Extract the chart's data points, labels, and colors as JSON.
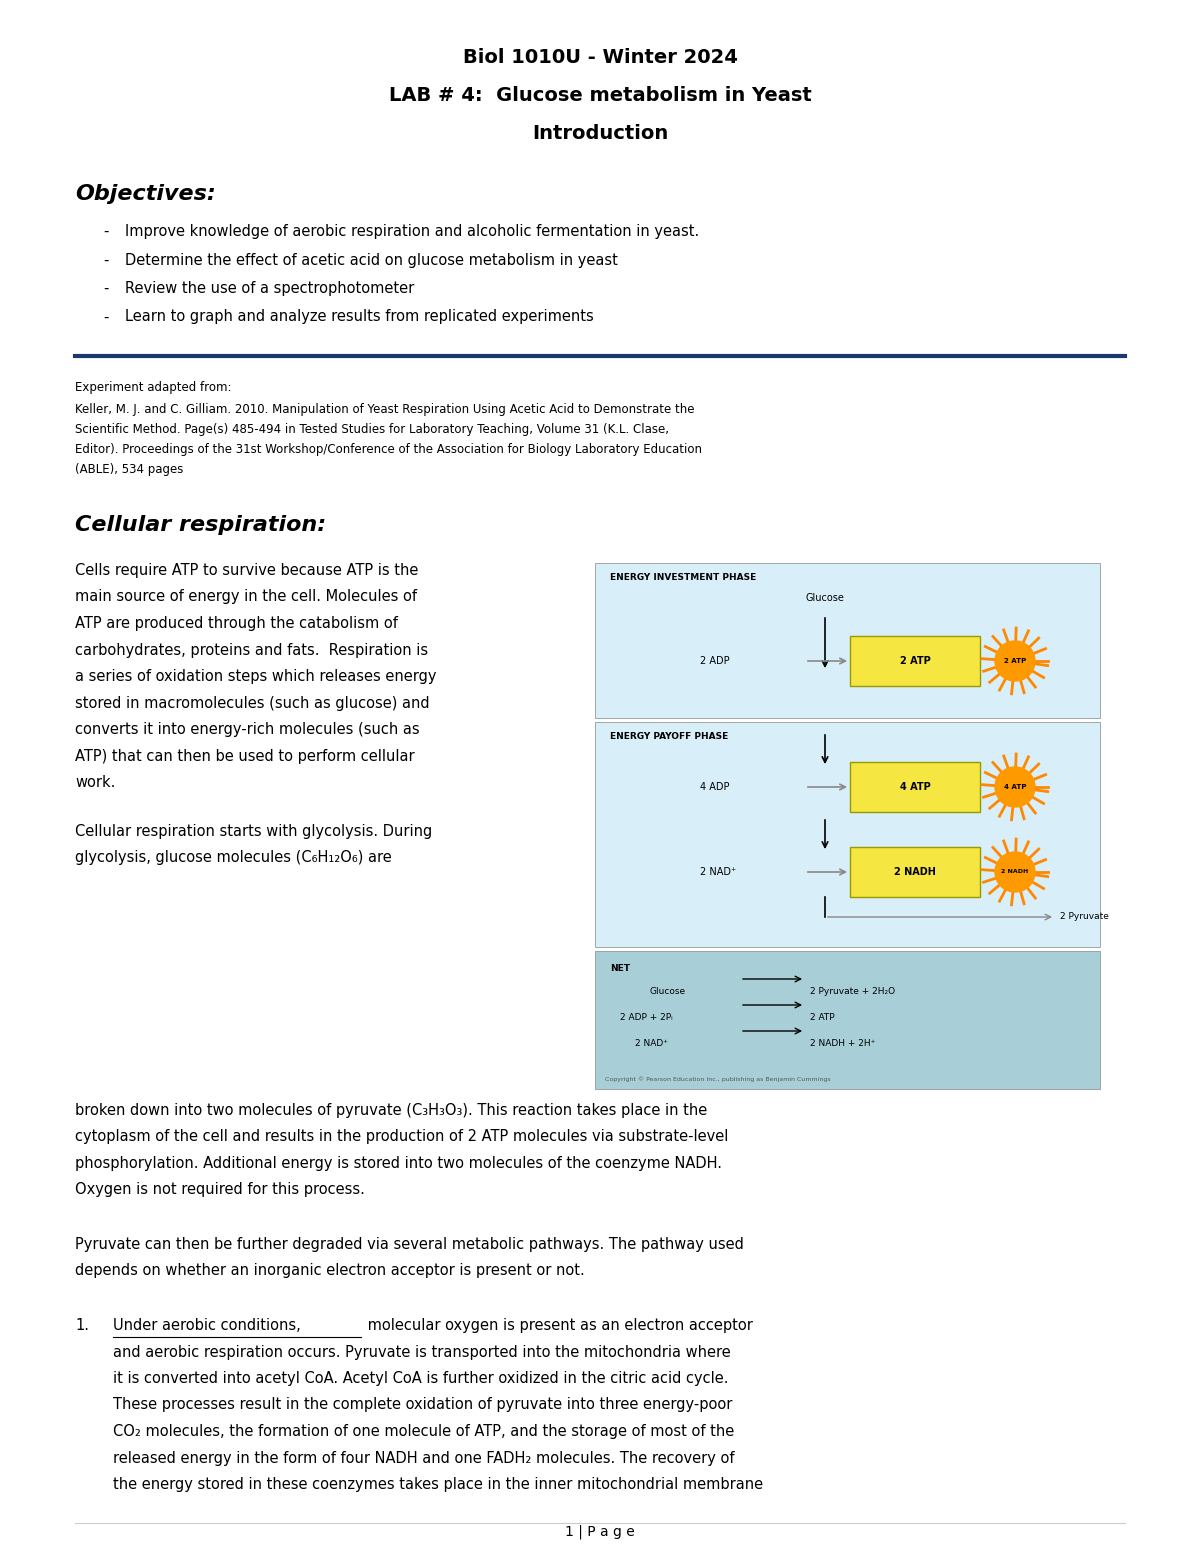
{
  "title_line1": "Biol 1010U - Winter 2024",
  "title_line2": "LAB # 4:  Glucose metabolism in Yeast",
  "title_line3": "Introduction",
  "objectives_header": "Objectives:",
  "objectives": [
    "Improve knowledge of aerobic respiration and alcoholic fermentation in yeast.",
    "Determine the effect of acetic acid on glucose metabolism in yeast",
    "Review the use of a spectrophotometer",
    "Learn to graph and analyze results from replicated experiments"
  ],
  "ref_label": "Experiment adapted from:",
  "ref_lines": [
    "Keller, M. J. and C. Gilliam. 2010. Manipulation of Yeast Respiration Using Acetic Acid to Demonstrate the",
    "Scientific Method. Page(s) 485-494 in Tested Studies for Laboratory Teaching, Volume 31 (K.L. Clase,",
    "Editor). Proceedings of the 31st Workshop/Conference of the Association for Biology Laboratory Education",
    "(ABLE), 534 pages"
  ],
  "cell_resp_header": "Cellular respiration:",
  "para1_lines": [
    "Cells require ATP to survive because ATP is the",
    "main source of energy in the cell. Molecules of",
    "ATP are produced through the catabolism of",
    "carbohydrates, proteins and fats.  Respiration is",
    "a series of oxidation steps which releases energy",
    "stored in macromolecules (such as glucose) and",
    "converts it into energy-rich molecules (such as",
    "ATP) that can then be used to perform cellular",
    "work."
  ],
  "para2_left_lines": [
    "Cellular respiration starts with glycolysis. During",
    "glycolysis, glucose molecules (C₆H₁₂O₆) are"
  ],
  "para2_full_lines": [
    "broken down into two molecules of pyruvate (C₃H₃O₃). This reaction takes place in the",
    "cytoplasm of the cell and results in the production of 2 ATP molecules via substrate-level",
    "phosphorylation. Additional energy is stored into two molecules of the coenzyme NADH.",
    "Oxygen is not required for this process."
  ],
  "para3_lines": [
    "Pyruvate can then be further degraded via several metabolic pathways. The pathway used",
    "depends on whether an inorganic electron acceptor is present or not."
  ],
  "aerobic_underlined": "Under aerobic conditions,",
  "aerobic_cont": " molecular oxygen is present as an electron acceptor",
  "aerobic_lines": [
    "and aerobic respiration occurs. Pyruvate is transported into the mitochondria where",
    "it is converted into acetyl CoA. Acetyl CoA is further oxidized in the citric acid cycle.",
    "These processes result in the complete oxidation of pyruvate into three energy-poor",
    "CO₂ molecules, the formation of one molecule of ATP, and the storage of most of the",
    "released energy in the form of four NADH and one FADH₂ molecules. The recovery of",
    "the energy stored in these coenzymes takes place in the inner mitochondrial membrane"
  ],
  "page_num": "1 | P a g e",
  "bg_color": "#ffffff",
  "title_color": "#000000",
  "header_color": "#000000",
  "divider_color": "#1a3a6b"
}
